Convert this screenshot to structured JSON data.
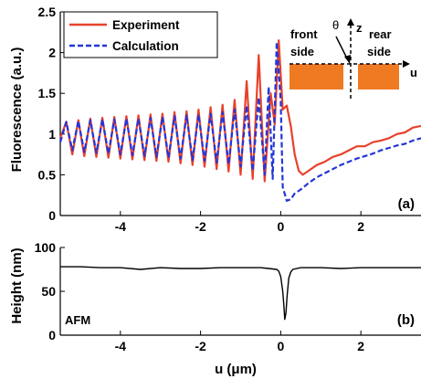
{
  "chart_data": [
    {
      "panel": "a",
      "type": "line",
      "ylabel": "Fluorescence (a.u.)",
      "xlabel": "",
      "xlim": [
        -5.5,
        3.5
      ],
      "ylim": [
        0,
        2.5
      ],
      "xticks": [
        "-4",
        "-2",
        "0",
        "2"
      ],
      "yticks": [
        "0",
        "0.5",
        "1",
        "1.5",
        "2",
        "2.5"
      ],
      "panel_tag": "(a)",
      "legend": {
        "placement": "top-left"
      },
      "series": [
        {
          "name": "Experiment",
          "color": "#e8412b",
          "style": "solid",
          "x": [
            -5.5,
            -5.35,
            -5.2,
            -5.05,
            -4.9,
            -4.75,
            -4.6,
            -4.45,
            -4.3,
            -4.15,
            -4.0,
            -3.85,
            -3.7,
            -3.55,
            -3.4,
            -3.25,
            -3.1,
            -2.95,
            -2.8,
            -2.65,
            -2.5,
            -2.35,
            -2.2,
            -2.05,
            -1.9,
            -1.75,
            -1.6,
            -1.45,
            -1.3,
            -1.15,
            -1.0,
            -0.85,
            -0.7,
            -0.55,
            -0.4,
            -0.25,
            -0.15,
            -0.05,
            0.05,
            0.15,
            0.25,
            0.35,
            0.45,
            0.55,
            0.7,
            0.9,
            1.1,
            1.3,
            1.5,
            1.7,
            1.9,
            2.1,
            2.3,
            2.5,
            2.7,
            2.9,
            3.1,
            3.3,
            3.5
          ],
          "y": [
            0.95,
            1.15,
            0.75,
            1.17,
            0.73,
            1.19,
            0.72,
            1.2,
            0.71,
            1.21,
            0.7,
            1.22,
            0.69,
            1.23,
            0.68,
            1.24,
            0.67,
            1.25,
            0.66,
            1.27,
            0.64,
            1.28,
            0.62,
            1.3,
            0.6,
            1.33,
            0.57,
            1.36,
            0.54,
            1.42,
            0.5,
            1.65,
            0.45,
            1.97,
            0.42,
            1.5,
            1.12,
            2.15,
            1.3,
            1.35,
            1.1,
            0.75,
            0.55,
            0.5,
            0.55,
            0.62,
            0.66,
            0.72,
            0.75,
            0.8,
            0.85,
            0.85,
            0.9,
            0.92,
            0.95,
            1.0,
            1.02,
            1.08,
            1.1
          ]
        },
        {
          "name": "Calculation",
          "color": "#2436d6",
          "style": "dashed",
          "x": [
            -5.5,
            -5.35,
            -5.2,
            -5.05,
            -4.9,
            -4.75,
            -4.6,
            -4.45,
            -4.3,
            -4.15,
            -4.0,
            -3.85,
            -3.7,
            -3.55,
            -3.4,
            -3.25,
            -3.1,
            -2.95,
            -2.8,
            -2.65,
            -2.5,
            -2.35,
            -2.2,
            -2.05,
            -1.9,
            -1.75,
            -1.6,
            -1.45,
            -1.3,
            -1.15,
            -1.0,
            -0.85,
            -0.7,
            -0.55,
            -0.4,
            -0.3,
            -0.2,
            -0.1,
            0.0,
            0.05,
            0.15,
            0.25,
            0.35,
            0.5,
            0.7,
            0.9,
            1.1,
            1.3,
            1.5,
            1.7,
            1.9,
            2.1,
            2.3,
            2.5,
            2.7,
            2.9,
            3.1,
            3.3,
            3.5
          ],
          "y": [
            0.9,
            1.15,
            0.8,
            1.16,
            0.78,
            1.17,
            0.77,
            1.18,
            0.76,
            1.18,
            0.75,
            1.19,
            0.74,
            1.19,
            0.73,
            1.2,
            0.72,
            1.21,
            0.71,
            1.22,
            0.7,
            1.23,
            0.68,
            1.24,
            0.67,
            1.25,
            0.65,
            1.27,
            0.63,
            1.3,
            0.6,
            1.35,
            0.55,
            1.45,
            0.5,
            1.58,
            0.45,
            2.13,
            1.4,
            0.35,
            0.18,
            0.2,
            0.27,
            0.32,
            0.4,
            0.47,
            0.52,
            0.57,
            0.62,
            0.66,
            0.7,
            0.73,
            0.76,
            0.8,
            0.83,
            0.86,
            0.88,
            0.92,
            0.95
          ]
        }
      ],
      "inset": {
        "labels": [
          "front",
          "side",
          "rear",
          "side",
          "θ",
          "z",
          "u"
        ],
        "color": "#f07a22"
      }
    },
    {
      "panel": "b",
      "type": "line",
      "ylabel": "Height (nm)",
      "xlabel": "u (μm)",
      "xlim": [
        -5.5,
        3.5
      ],
      "ylim": [
        0,
        100
      ],
      "xticks": [
        "-4",
        "-2",
        "0",
        "2"
      ],
      "yticks": [
        "0",
        "50",
        "100"
      ],
      "panel_tag": "(b)",
      "annotation": "AFM",
      "series": [
        {
          "color": "#000000",
          "style": "solid",
          "x": [
            -5.5,
            -5.0,
            -4.5,
            -4.0,
            -3.5,
            -3.0,
            -2.5,
            -2.0,
            -1.5,
            -1.0,
            -0.5,
            -0.3,
            -0.1,
            -0.05,
            0.0,
            0.05,
            0.08,
            0.1,
            0.13,
            0.16,
            0.2,
            0.25,
            0.3,
            0.5,
            1.0,
            1.5,
            2.0,
            2.5,
            3.0,
            3.5
          ],
          "y": [
            78,
            78,
            77,
            77,
            75,
            77,
            76,
            76,
            77,
            77,
            77,
            76,
            75,
            73,
            67,
            50,
            33,
            18,
            25,
            45,
            65,
            72,
            75,
            77,
            77,
            76,
            77,
            77,
            77,
            77
          ]
        }
      ]
    }
  ]
}
